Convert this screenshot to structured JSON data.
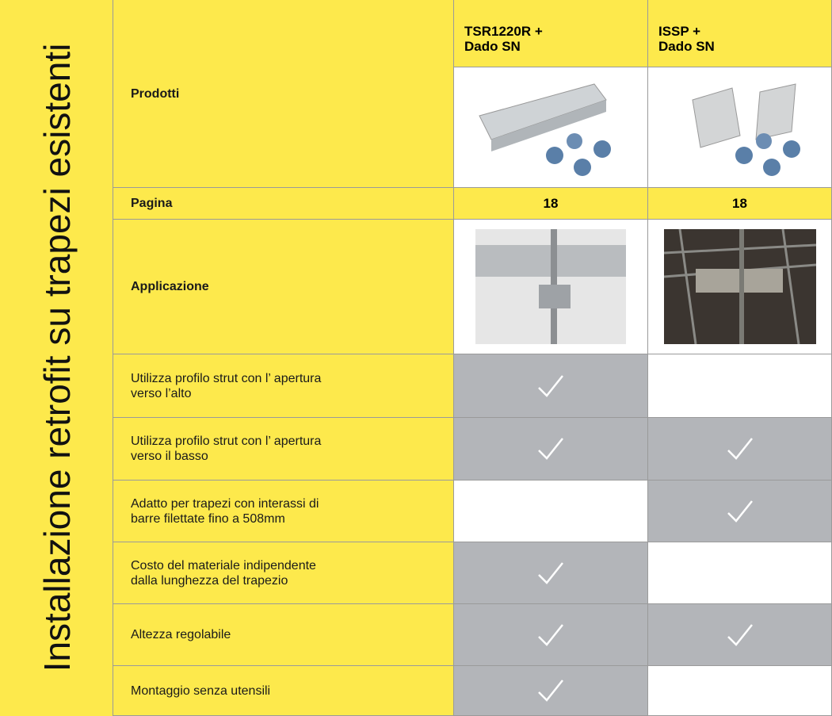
{
  "side_title": "Installazione retrofit su trapezi esistenti",
  "columns": [
    "TSR1220R +\nDado SN",
    "ISSP +\nDado SN"
  ],
  "products_label": "Prodotti",
  "page_label": "Pagina",
  "pages": [
    "18",
    "18"
  ],
  "application_label": "Applicazione",
  "features": [
    {
      "label": "Utilizza profilo strut con l’ apertura\nverso l’alto",
      "checks": [
        true,
        false
      ]
    },
    {
      "label": "Utilizza profilo strut con l’ apertura\nverso il basso",
      "checks": [
        true,
        true
      ]
    },
    {
      "label": "Adatto per trapezi con interassi di\nbarre filettate fino a 508mm",
      "checks": [
        false,
        true
      ]
    },
    {
      "label": "Costo del materiale indipendente\ndalla lunghezza del trapezio",
      "checks": [
        true,
        false
      ]
    },
    {
      "label": "Altezza regolabile",
      "checks": [
        true,
        true
      ]
    },
    {
      "label": "Montaggio senza utensili",
      "checks": [
        true,
        false
      ]
    }
  ]
}
